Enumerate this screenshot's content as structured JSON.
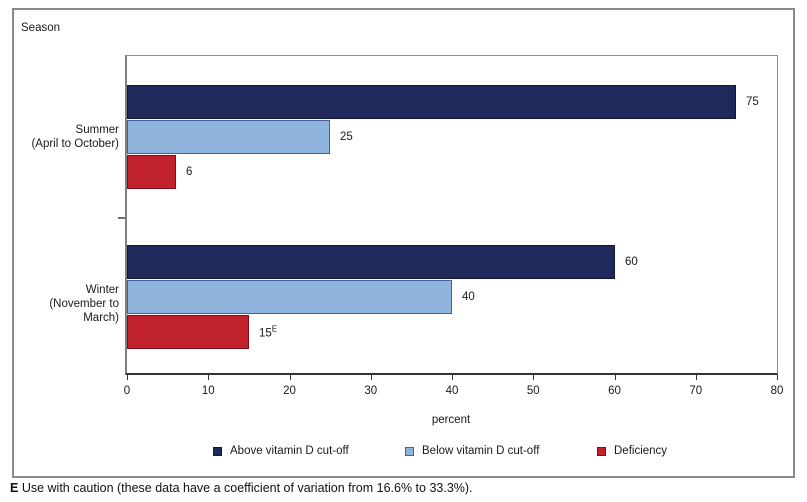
{
  "page": {
    "season_axis_title": "Season",
    "footnote": {
      "flag": "E",
      "text": " Use with caution (these data have a coefficient of variation from 16.6% to 33.3%)."
    }
  },
  "chart_data": {
    "type": "bar",
    "orientation": "horizontal",
    "title": "",
    "xlabel": "percent",
    "ylabel": "Season",
    "xlim": [
      0,
      80
    ],
    "xticks": [
      0,
      10,
      20,
      30,
      40,
      50,
      60,
      70,
      80
    ],
    "grid": false,
    "legend_position": "bottom",
    "categories": [
      {
        "line1": "Summer",
        "line2": "(April to October)"
      },
      {
        "line1": "Winter",
        "line2": "(November to March)"
      }
    ],
    "series": [
      {
        "name": "Above vitamin D cut-off",
        "color": "#1f2a5b",
        "border_color": "#10173a",
        "values": [
          75,
          60
        ],
        "value_labels": [
          "75",
          "60"
        ],
        "value_flags": [
          "",
          ""
        ]
      },
      {
        "name": "Below vitamin D cut-off",
        "color": "#8fb4de",
        "border_color": "#43619b",
        "values": [
          25,
          40
        ],
        "value_labels": [
          "25",
          "40"
        ],
        "value_flags": [
          "",
          ""
        ]
      },
      {
        "name": "Deficiency",
        "color": "#c2222e",
        "border_color": "#7c0f16",
        "values": [
          6,
          15
        ],
        "value_labels": [
          "6",
          "15"
        ],
        "value_flags": [
          "",
          "E"
        ]
      }
    ]
  }
}
